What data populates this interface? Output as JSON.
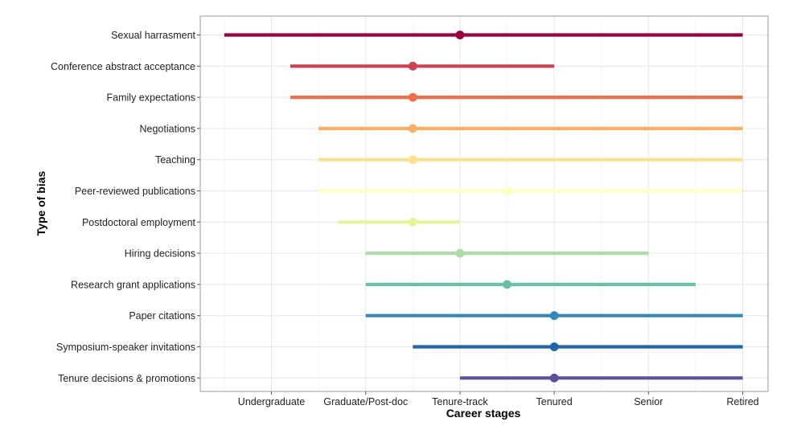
{
  "chart_data": {
    "type": "range-dot",
    "xlabel": "Career stages",
    "ylabel": "Type of bias",
    "x_ticks": [
      "Undergraduate",
      "Graduate/Post-doc",
      "Tenure-track",
      "Tenured",
      "Senior",
      "Retired"
    ],
    "x_tick_values": [
      1,
      2,
      3,
      4,
      5,
      6
    ],
    "xlim": [
      0.4,
      6.3
    ],
    "grid": true,
    "series": [
      {
        "name": "Sexual harrasment",
        "start": 0.5,
        "point": 3.0,
        "end": 6.0,
        "color": "#9E0142"
      },
      {
        "name": "Conference abstract acceptance",
        "start": 1.2,
        "point": 2.5,
        "end": 4.0,
        "color": "#D53E4F"
      },
      {
        "name": "Family expectations",
        "start": 1.2,
        "point": 2.5,
        "end": 6.0,
        "color": "#F46D43"
      },
      {
        "name": "Negotiations",
        "start": 1.5,
        "point": 2.5,
        "end": 6.0,
        "color": "#FDAE61"
      },
      {
        "name": "Teaching",
        "start": 1.5,
        "point": 2.5,
        "end": 6.0,
        "color": "#FEE08B"
      },
      {
        "name": "Peer-reviewed publications",
        "start": 1.5,
        "point": 3.5,
        "end": 6.0,
        "color": "#FFFFBF"
      },
      {
        "name": "Postdoctoral employment",
        "start": 1.7,
        "point": 2.5,
        "end": 3.0,
        "color": "#E6F598"
      },
      {
        "name": "Hiring decisions",
        "start": 2.0,
        "point": 3.0,
        "end": 5.0,
        "color": "#ABDDA4"
      },
      {
        "name": "Research grant applications",
        "start": 2.0,
        "point": 3.5,
        "end": 5.5,
        "color": "#66C2A5"
      },
      {
        "name": "Paper citations",
        "start": 2.0,
        "point": 4.0,
        "end": 6.0,
        "color": "#3288BD"
      },
      {
        "name": "Symposium-speaker invitations",
        "start": 2.5,
        "point": 4.0,
        "end": 6.0,
        "color": "#1F65AD"
      },
      {
        "name": "Tenure decisions & promotions",
        "start": 3.0,
        "point": 4.0,
        "end": 6.0,
        "color": "#5E4FA2"
      }
    ]
  }
}
